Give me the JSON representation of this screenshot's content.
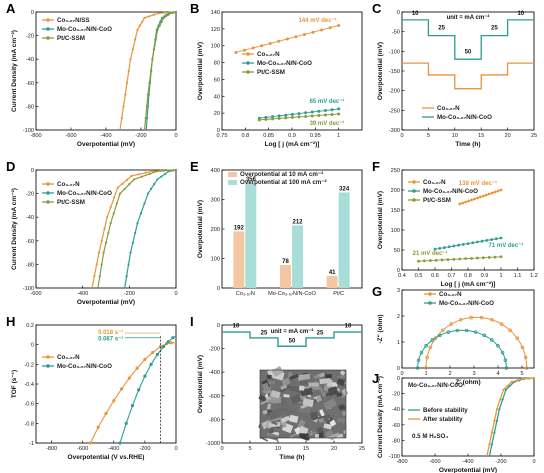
{
  "colors": {
    "orange": "#E8953D",
    "teal": "#2E9E92",
    "green": "#8A9A3C",
    "black": "#111111",
    "bar10": "#F4C7A4",
    "bar100": "#A9DDD8"
  },
  "chart_data": [
    {
      "panel": "A",
      "type": "line",
      "xlabel": "Overpotential (mV)",
      "ylabel": "Current Density (mA cm⁻²)",
      "xlim": [
        -800,
        0
      ],
      "ylim": [
        -100,
        0
      ],
      "xticks": [
        -800,
        -600,
        -400,
        -200,
        0
      ],
      "yticks": [
        -100,
        -80,
        -60,
        -40,
        -20,
        0
      ],
      "legend": [
        "Co₃.₆₇N/SS",
        "Mo-Co₃.₆₇N/N-CoO",
        "Pt/C-SSM"
      ],
      "series": [
        {
          "name": "Co₃.₆₇N/SS",
          "color": "orange",
          "x": [
            0,
            -100,
            -180,
            -220,
            -260,
            -290,
            -320
          ],
          "y": [
            0,
            -1,
            -5,
            -15,
            -40,
            -70,
            -100
          ]
        },
        {
          "name": "Mo-Co₃.₆₇N/N-CoO",
          "color": "teal",
          "x": [
            0,
            -40,
            -80,
            -110,
            -135,
            -155,
            -170
          ],
          "y": [
            0,
            -1,
            -5,
            -15,
            -40,
            -70,
            -100
          ]
        },
        {
          "name": "Pt/C-SSM",
          "color": "green",
          "x": [
            0,
            -30,
            -70,
            -105,
            -135,
            -160,
            -180
          ],
          "y": [
            0,
            -1,
            -5,
            -15,
            -40,
            -70,
            -100
          ]
        }
      ]
    },
    {
      "panel": "B",
      "type": "scatter",
      "xlabel": "Log [ j (mA cm⁻²)]",
      "ylabel": "Overpotential (mV)",
      "xlim": [
        0.75,
        1.05
      ],
      "ylim": [
        0,
        140
      ],
      "xticks": [
        0.75,
        0.8,
        0.85,
        0.9,
        0.95,
        1.0
      ],
      "yticks": [
        0,
        20,
        40,
        60,
        80,
        100,
        120,
        140
      ],
      "legend": [
        "Co₃.₆₇N",
        "Mo-Co₃.₆₇N/N-CoO",
        "Pt/C-SSM"
      ],
      "annotations": [
        "144 mV dec⁻¹",
        "65 mV dec⁻¹",
        "39 mV dec⁻¹"
      ],
      "series": [
        {
          "name": "Co₃.₆₇N",
          "color": "orange",
          "x": [
            0.78,
            1.0
          ],
          "y": [
            92,
            124
          ]
        },
        {
          "name": "Mo-Co₃.₆₇N/N-CoO",
          "color": "teal",
          "x": [
            0.83,
            1.0
          ],
          "y": [
            14,
            25
          ]
        },
        {
          "name": "Pt/C-SSM",
          "color": "green",
          "x": [
            0.83,
            1.0
          ],
          "y": [
            12,
            19
          ]
        }
      ]
    },
    {
      "panel": "C",
      "type": "line",
      "xlabel": "Time (h)",
      "ylabel": "Overpotential (mV)",
      "xlim": [
        0,
        25
      ],
      "ylim": [
        -300,
        0
      ],
      "xticks": [
        0,
        5,
        10,
        15,
        20,
        25
      ],
      "yticks": [
        -300,
        -250,
        -200,
        -150,
        -100,
        -50,
        0
      ],
      "legend": [
        "Co₃.₆₇N",
        "Mo-Co₃.₆₇N/N-CoO"
      ],
      "annotations": [
        "unit = mA cm⁻²",
        "10",
        "25",
        "50",
        "25",
        "10"
      ],
      "series": [
        {
          "name": "Co₃.₆₇N",
          "color": "orange",
          "x": [
            0,
            5,
            5,
            10,
            10,
            15,
            15,
            20,
            20,
            25
          ],
          "y": [
            -130,
            -130,
            -160,
            -160,
            -195,
            -195,
            -160,
            -160,
            -130,
            -130
          ]
        },
        {
          "name": "Mo-Co₃.₆₇N/N-CoO",
          "color": "teal",
          "x": [
            0,
            5,
            5,
            10,
            10,
            15,
            15,
            20,
            20,
            25
          ],
          "y": [
            -20,
            -20,
            -60,
            -60,
            -120,
            -120,
            -60,
            -60,
            -20,
            -20
          ]
        }
      ]
    },
    {
      "panel": "D",
      "type": "line",
      "xlabel": "Overpotential (mV)",
      "ylabel": "Current Density (mA cm⁻²)",
      "xlim": [
        -600,
        0
      ],
      "ylim": [
        -100,
        0
      ],
      "xticks": [
        -600,
        -400,
        -200,
        0
      ],
      "yticks": [
        -100,
        -80,
        -60,
        -40,
        -20,
        0
      ],
      "legend": [
        "Co₃.₆₇N",
        "Mo-Co₃.₆₇N/N-CoO",
        "Pt/C-SSM"
      ],
      "series": [
        {
          "name": "Co₃.₆₇N",
          "color": "orange",
          "x": [
            0,
            -100,
            -190,
            -250,
            -295,
            -330,
            -360
          ],
          "y": [
            0,
            -1,
            -5,
            -15,
            -40,
            -70,
            -100
          ]
        },
        {
          "name": "Mo-Co₃.₆₇N/N-CoO",
          "color": "teal",
          "x": [
            0,
            -30,
            -80,
            -120,
            -165,
            -195,
            -220
          ],
          "y": [
            0,
            -1,
            -8,
            -20,
            -45,
            -70,
            -100
          ]
        },
        {
          "name": "Pt/C-SSM",
          "color": "green",
          "x": [
            0,
            -80,
            -180,
            -240,
            -280,
            -310,
            -335
          ],
          "y": [
            0,
            -1,
            -8,
            -20,
            -45,
            -70,
            -100
          ]
        }
      ]
    },
    {
      "panel": "E",
      "type": "bar",
      "ylabel": "Overpotential (mV)",
      "ylim": [
        0,
        400
      ],
      "yticks": [
        0,
        100,
        200,
        300,
        400
      ],
      "categories": [
        "Co₃.₆₇N",
        "Mo-Co₃.₆₇N/N-CoO",
        "Pt/C"
      ],
      "legend": [
        "Overpotential at 10 mA cm⁻²",
        "Overpotential at 100 mA cm⁻²"
      ],
      "series": [
        {
          "name": "Overpotential at 10 mA cm⁻²",
          "color": "bar10",
          "values": [
            192,
            78,
            41
          ]
        },
        {
          "name": "Overpotential at 100 mA cm⁻²",
          "color": "bar100",
          "values": [
            356,
            212,
            324
          ]
        }
      ]
    },
    {
      "panel": "F",
      "type": "scatter",
      "xlabel": "Log [ j (mA cm⁻²)]",
      "ylabel": "Overpotential (mV)",
      "xlim": [
        0.4,
        1.2
      ],
      "ylim": [
        0,
        250
      ],
      "xticks": [
        0.4,
        0.5,
        0.6,
        0.7,
        0.8,
        0.9,
        1.0,
        1.1,
        1.2
      ],
      "yticks": [
        0,
        50,
        100,
        150,
        200,
        250
      ],
      "legend": [
        "Co₃.₆₇N",
        "Mo-Co₃.₆₇N/N-CoO",
        "Pt/C-SSM"
      ],
      "annotations": [
        "138 mV dec⁻¹",
        "71 mV dec⁻¹",
        "21 mV dec⁻¹"
      ],
      "series": [
        {
          "name": "Co₃.₆₇N",
          "color": "orange",
          "x": [
            0.75,
            1.0
          ],
          "y": [
            165,
            200
          ]
        },
        {
          "name": "Mo-Co₃.₆₇N/N-CoO",
          "color": "teal",
          "x": [
            0.6,
            1.0
          ],
          "y": [
            52,
            80
          ]
        },
        {
          "name": "Pt/C-SSM",
          "color": "green",
          "x": [
            0.5,
            1.0
          ],
          "y": [
            22,
            33
          ]
        }
      ]
    },
    {
      "panel": "G",
      "type": "scatter",
      "xlabel": "Z' (ohm)",
      "ylabel": "-Z'' (ohm)",
      "xlim": [
        0,
        5.5
      ],
      "ylim": [
        0,
        3
      ],
      "xticks": [
        0,
        1,
        2,
        3,
        4,
        5
      ],
      "yticks": [
        0,
        1,
        2,
        3
      ],
      "legend": [
        "Co₃.₆₇N",
        "Mo-Co₃.₆₇N/N-CoO"
      ],
      "series": [
        {
          "name": "Co₃.₆₇N",
          "color": "orange",
          "center": 3.1,
          "radius": 2.1,
          "max_y": 1.95
        },
        {
          "name": "Mo-Co₃.₆₇N/N-CoO",
          "color": "teal",
          "center": 2.5,
          "radius": 1.85,
          "max_y": 1.45
        }
      ]
    },
    {
      "panel": "H",
      "type": "line",
      "xlabel": "Overpotential (V vs.RHE)",
      "ylabel": "TOF (s⁻¹)",
      "xlim": [
        -900,
        0
      ],
      "ylim": [
        -1.0,
        0.2
      ],
      "xticks": [
        -800,
        -600,
        -400,
        -200,
        0
      ],
      "yticks": [
        -1.0,
        -0.8,
        -0.6,
        -0.4,
        -0.2,
        0.0,
        0.2
      ],
      "legend": [
        "Co₃.₆₇N",
        "Mo-Co₃.₆₇N/N-CoO"
      ],
      "annotations": [
        "0.018 s⁻¹",
        "0.087 s⁻¹"
      ],
      "series": [
        {
          "name": "Co₃.₆₇N",
          "color": "orange",
          "x": [
            -550,
            -500,
            -450,
            -400,
            -350,
            -300,
            -250,
            -200,
            -150,
            -100,
            -60,
            -30,
            0
          ],
          "y": [
            -1.0,
            -0.84,
            -0.7,
            -0.57,
            -0.45,
            -0.34,
            -0.24,
            -0.15,
            -0.08,
            -0.02,
            0.01,
            0.018,
            0.02
          ]
        },
        {
          "name": "Mo-Co₃.₆₇N/N-CoO",
          "color": "teal",
          "x": [
            -360,
            -320,
            -280,
            -240,
            -200,
            -160,
            -120,
            -80,
            -50,
            -20,
            0
          ],
          "y": [
            -1.0,
            -0.8,
            -0.62,
            -0.46,
            -0.32,
            -0.2,
            -0.1,
            -0.02,
            0.03,
            0.07,
            0.087
          ]
        }
      ]
    },
    {
      "panel": "I",
      "type": "line",
      "xlabel": "Time (h)",
      "ylabel": "Overpotential (mV)",
      "xlim": [
        0,
        25
      ],
      "ylim": [
        -1000,
        0
      ],
      "xticks": [
        0,
        5,
        10,
        15,
        20,
        25
      ],
      "yticks": [
        -1000,
        -800,
        -600,
        -400,
        -200,
        0
      ],
      "annotations": [
        "unit = mA cm⁻²",
        "10",
        "25",
        "50",
        "25",
        "10"
      ],
      "series": [
        {
          "name": "",
          "color": "teal",
          "x": [
            0,
            5,
            5,
            10,
            10,
            15,
            15,
            20,
            20,
            25
          ],
          "y": [
            -60,
            -60,
            -110,
            -110,
            -180,
            -180,
            -110,
            -110,
            -60,
            -60
          ]
        }
      ]
    },
    {
      "panel": "J",
      "type": "line",
      "xlabel": "Overpotential (mV)",
      "ylabel": "Current Density (mA cm⁻²)",
      "xlim": [
        -800,
        0
      ],
      "ylim": [
        -100,
        0
      ],
      "xticks": [
        -800,
        -600,
        -400,
        -200,
        0
      ],
      "yticks": [
        -100,
        -80,
        -60,
        -40,
        -20,
        0
      ],
      "title": "Mo-Co₃.₆₇N/N-CoO",
      "legend": [
        "Before stability",
        "After stability"
      ],
      "annotations": [
        "0.5 M H₂SO₄"
      ],
      "series": [
        {
          "name": "Before stability",
          "color": "teal",
          "x": [
            0,
            -60,
            -120,
            -170,
            -210,
            -240,
            -270
          ],
          "y": [
            0,
            -1,
            -5,
            -15,
            -40,
            -70,
            -100
          ]
        },
        {
          "name": "After stability",
          "color": "orange",
          "x": [
            0,
            -70,
            -135,
            -185,
            -225,
            -255,
            -285
          ],
          "y": [
            0,
            -1,
            -5,
            -15,
            -40,
            -70,
            -100
          ]
        }
      ]
    }
  ]
}
